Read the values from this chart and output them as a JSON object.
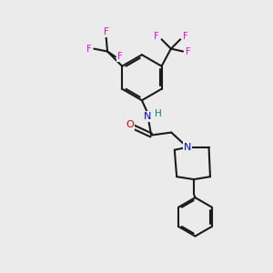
{
  "bg_color": "#ebebeb",
  "bond_color": "#1a1a1a",
  "bond_width": 1.5,
  "N_color": "#0000ee",
  "O_color": "#dd0000",
  "F_color": "#ee00ee",
  "H_color": "#008080",
  "figsize": [
    3.0,
    3.0
  ],
  "dpi": 100,
  "xlim": [
    0,
    10
  ],
  "ylim": [
    0,
    10
  ]
}
